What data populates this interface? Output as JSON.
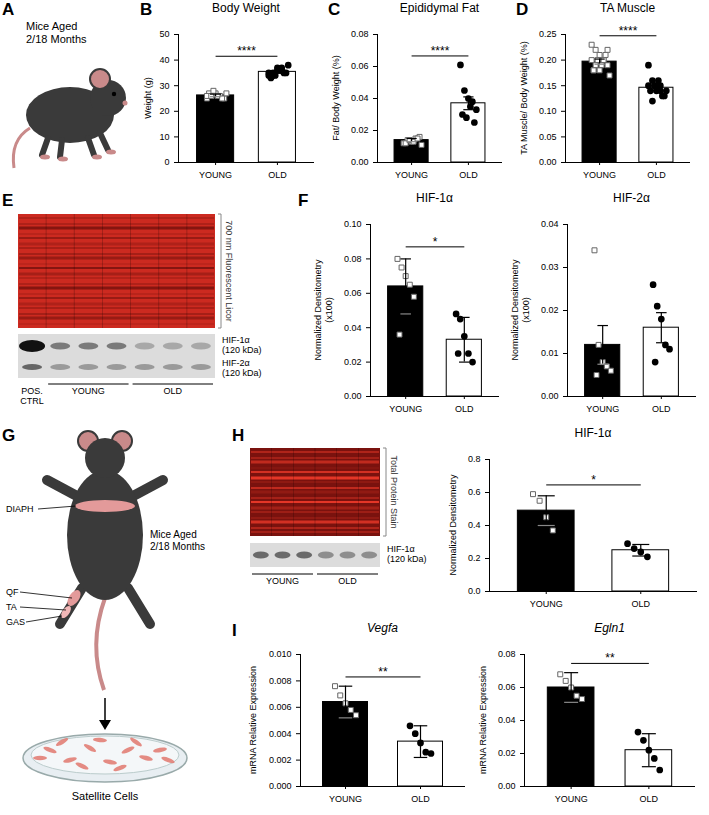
{
  "panel_letters": [
    "A",
    "B",
    "C",
    "D",
    "E",
    "F",
    "G",
    "H",
    "I"
  ],
  "cartoon_a": {
    "label": "Mice Aged\n2/18 Months"
  },
  "blot_e": {
    "stain_label": "700 nm Fluorescent Licor",
    "bands": [
      "HIF-1α\n(120 kDa)",
      "HIF-2α\n(120 kDa)"
    ],
    "lanes": [
      "POS.\nCTRL",
      "YOUNG",
      "OLD"
    ]
  },
  "cartoon_g": {
    "label": "Mice Aged\n2/18 Months",
    "muscles": [
      "DIAPH",
      "QF",
      "TA",
      "GAS"
    ],
    "dish_label": "Satellite Cells"
  },
  "blot_h": {
    "stain_label": "Total Protein Stain",
    "bands": [
      "HIF-1α\n(120 kDa)"
    ],
    "lanes": [
      "YOUNG",
      "OLD"
    ]
  },
  "chart_data": [
    {
      "type": "bar",
      "title": "Body Weight",
      "y_label": "Weight (g)",
      "categories": [
        "YOUNG",
        "OLD"
      ],
      "values": [
        26.2,
        35.4
      ],
      "errors": [
        0.5,
        0.5
      ],
      "points": [
        [
          25,
          26,
          27,
          26,
          25,
          27,
          28,
          26,
          25,
          27,
          26,
          26
        ],
        [
          35,
          34,
          36,
          37,
          35,
          33,
          34,
          36,
          35,
          38,
          34,
          35,
          37,
          36
        ]
      ],
      "colors": [
        "#000000",
        "#ffffff"
      ],
      "ylim": [
        0,
        50
      ],
      "yticks": [
        0,
        10,
        20,
        30,
        40,
        50
      ],
      "annotation": "****"
    },
    {
      "type": "bar",
      "title": "Epididymal Fat",
      "y_label": "Fat/ Body Weight (%)",
      "categories": [
        "YOUNG",
        "OLD"
      ],
      "values": [
        0.014,
        0.037
      ],
      "errors": [
        0.001,
        0.004
      ],
      "points": [
        [
          0.012,
          0.014,
          0.013,
          0.015,
          0.016,
          0.012,
          0.014,
          0.013,
          0.015,
          0.011
        ],
        [
          0.061,
          0.045,
          0.04,
          0.038,
          0.033,
          0.03,
          0.028,
          0.035,
          0.025
        ]
      ],
      "colors": [
        "#000000",
        "#ffffff"
      ],
      "ylim": [
        0,
        0.08
      ],
      "yticks": [
        {
          "value": 0,
          "label": "0.00"
        },
        0.02,
        0.04,
        0.06,
        0.08
      ],
      "annotation": "****"
    },
    {
      "type": "bar",
      "title": "TA Muscle",
      "y_label": "TA Muscle/ Body Weight (%)",
      "categories": [
        "YOUNG",
        "OLD"
      ],
      "values": [
        0.197,
        0.146
      ],
      "errors": [
        0.005,
        0.005
      ],
      "points": [
        [
          0.23,
          0.22,
          0.21,
          0.2,
          0.19,
          0.18,
          0.2,
          0.19,
          0.21,
          0.17,
          0.2,
          0.19,
          0.18,
          0.2,
          0.22,
          0.18
        ],
        [
          0.19,
          0.16,
          0.15,
          0.14,
          0.13,
          0.14,
          0.15,
          0.16,
          0.13,
          0.14,
          0.15,
          0.12,
          0.14,
          0.15
        ]
      ],
      "colors": [
        "#000000",
        "#ffffff"
      ],
      "ylim": [
        0,
        0.25
      ],
      "yticks": [
        {
          "value": 0,
          "label": "0.00"
        },
        0.05,
        {
          "value": 0.1,
          "label": "0.10"
        },
        0.15,
        {
          "value": 0.2,
          "label": "0.20"
        },
        0.25
      ],
      "annotation": "****"
    },
    {
      "type": "bar",
      "title": "HIF-1α",
      "y_label": "Normalized Densitometry\n(x100)",
      "categories": [
        "YOUNG",
        "OLD"
      ],
      "values": [
        0.064,
        0.033
      ],
      "errors": [
        0.016,
        0.013
      ],
      "points": [
        [
          0.08,
          0.075,
          0.07,
          0.065,
          0.058,
          0.036
        ],
        [
          0.048,
          0.045,
          0.035,
          0.025,
          0.02,
          0.025
        ]
      ],
      "colors": [
        "#000000",
        "#ffffff"
      ],
      "ylim": [
        0,
        0.1
      ],
      "yticks": [
        {
          "value": 0,
          "label": "0.00"
        },
        0.02,
        0.04,
        0.06,
        0.08,
        {
          "value": 0.1,
          "label": "0.10"
        }
      ],
      "annotation": "*"
    },
    {
      "type": "bar",
      "title": "HIF-2α",
      "y_label": "Normalized Densitometry\n(x100)",
      "categories": [
        "YOUNG",
        "OLD"
      ],
      "values": [
        0.012,
        0.016
      ],
      "errors": [
        0.0045,
        0.0035
      ],
      "points": [
        [
          0.034,
          0.012,
          0.008,
          0.007,
          0.006,
          0.005
        ],
        [
          0.026,
          0.021,
          0.018,
          0.012,
          0.011,
          0.008
        ]
      ],
      "colors": [
        "#000000",
        "#ffffff"
      ],
      "ylim": [
        0,
        0.04
      ],
      "yticks": [
        {
          "value": 0,
          "label": "0.00"
        },
        0.01,
        0.02,
        0.03,
        0.04
      ]
    },
    {
      "type": "bar",
      "title": "HIF-1α",
      "y_label": "Normalized Densitometry",
      "categories": [
        "YOUNG",
        "OLD"
      ],
      "values": [
        0.49,
        0.25
      ],
      "errors": [
        0.09,
        0.035
      ],
      "points": [
        [
          0.59,
          0.55,
          0.45,
          0.37
        ],
        [
          0.29,
          0.26,
          0.24,
          0.21
        ]
      ],
      "colors": [
        "#000000",
        "#ffffff"
      ],
      "ylim": [
        0,
        0.8
      ],
      "yticks": [
        {
          "value": 0,
          "label": "0.0"
        },
        0.2,
        0.4,
        0.6,
        0.8
      ],
      "annotation": "*"
    },
    {
      "type": "bar",
      "title": "Vegfa",
      "y_label": "mRNA Relative Expression",
      "categories": [
        "YOUNG",
        "OLD"
      ],
      "values": [
        0.0064,
        0.0034
      ],
      "errors": [
        0.0012,
        0.0012
      ],
      "points": [
        [
          0.0076,
          0.0069,
          0.0063,
          0.0058,
          0.0054
        ],
        [
          0.0046,
          0.004,
          0.0033,
          0.0026,
          0.0025
        ]
      ],
      "colors": [
        "#000000",
        "#ffffff"
      ],
      "ylim": [
        0,
        0.01
      ],
      "yticks": [
        {
          "value": 0,
          "label": "0.000"
        },
        0.002,
        0.004,
        0.006,
        0.008,
        {
          "value": 0.01,
          "label": "0.010"
        }
      ],
      "annotation": "**"
    },
    {
      "type": "bar",
      "title": "Egln1",
      "y_label": "mRNA Relative Expression",
      "categories": [
        "YOUNG",
        "OLD"
      ],
      "values": [
        0.06,
        0.022
      ],
      "errors": [
        0.009,
        0.01
      ],
      "points": [
        [
          0.068,
          0.064,
          0.06,
          0.055,
          0.053
        ],
        [
          0.033,
          0.028,
          0.022,
          0.017,
          0.01
        ]
      ],
      "colors": [
        "#000000",
        "#ffffff"
      ],
      "ylim": [
        0,
        0.08
      ],
      "yticks": [
        {
          "value": 0,
          "label": "0.00"
        },
        0.02,
        0.04,
        0.06,
        0.08
      ],
      "annotation": "**"
    }
  ]
}
